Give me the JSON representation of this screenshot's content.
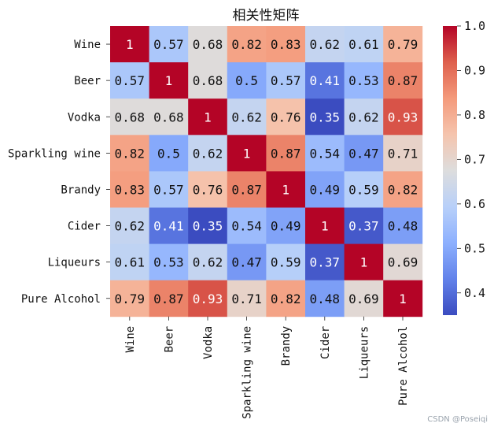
{
  "chart_data": {
    "type": "heatmap",
    "title": "相关性矩阵",
    "rows": [
      "Wine",
      "Beer",
      "Vodka",
      "Sparkling wine",
      "Brandy",
      "Cider",
      "Liqueurs",
      "Pure Alcohol"
    ],
    "columns": [
      "Wine",
      "Beer",
      "Vodka",
      "Sparkling wine",
      "Brandy",
      "Cider",
      "Liqueurs",
      "Pure Alcohol"
    ],
    "values": [
      [
        1,
        0.57,
        0.68,
        0.82,
        0.83,
        0.62,
        0.61,
        0.79
      ],
      [
        0.57,
        1,
        0.68,
        0.5,
        0.57,
        0.41,
        0.53,
        0.87
      ],
      [
        0.68,
        0.68,
        1,
        0.62,
        0.76,
        0.35,
        0.62,
        0.93
      ],
      [
        0.82,
        0.5,
        0.62,
        1,
        0.87,
        0.54,
        0.47,
        0.71
      ],
      [
        0.83,
        0.57,
        0.76,
        0.87,
        1,
        0.49,
        0.59,
        0.82
      ],
      [
        0.62,
        0.41,
        0.35,
        0.54,
        0.49,
        1,
        0.37,
        0.48
      ],
      [
        0.61,
        0.53,
        0.62,
        0.47,
        0.59,
        0.37,
        1,
        0.69
      ],
      [
        0.79,
        0.87,
        0.93,
        0.71,
        0.82,
        0.48,
        0.69,
        1
      ]
    ],
    "colormap": "coolwarm",
    "vmin": 0.35,
    "vmax": 1.0,
    "colorbar_ticks": [
      "0.4",
      "0.5",
      "0.6",
      "0.7",
      "0.8",
      "0.9",
      "1.0"
    ],
    "annotated": true
  },
  "watermark": "CSDN @Poseiqi"
}
